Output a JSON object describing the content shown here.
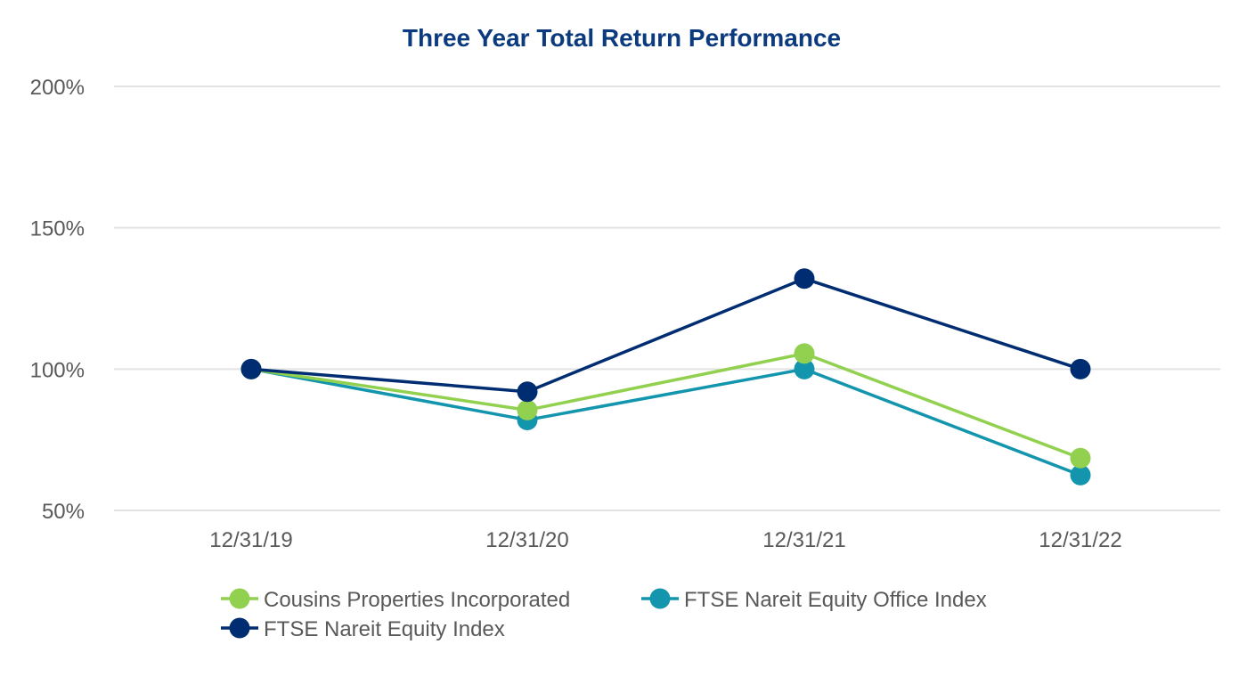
{
  "chart_data": {
    "type": "line",
    "title": "Three Year Total Return Performance",
    "xlabel": "",
    "ylabel": "",
    "x": [
      "12/31/19",
      "12/31/20",
      "12/31/21",
      "12/31/22"
    ],
    "y_ticks": [
      "50%",
      "100%",
      "150%",
      "200%"
    ],
    "y_tick_values": [
      50,
      100,
      150,
      200
    ],
    "ylim": [
      50,
      200
    ],
    "grid": true,
    "legend_position": "bottom",
    "series": [
      {
        "name": "Cousins Properties Incorporated",
        "values": [
          100,
          85.5,
          105.5,
          68.5
        ],
        "color": "#92d050"
      },
      {
        "name": "FTSE Nareit Equity Office Index",
        "values": [
          100,
          82,
          100,
          62.5
        ],
        "color": "#1295ad"
      },
      {
        "name": "FTSE Nareit Equity Index",
        "values": [
          100,
          92,
          132,
          100
        ],
        "color": "#002d72"
      }
    ],
    "draw_order": [
      1,
      0,
      2
    ],
    "title_color": "#0b3a7e"
  }
}
